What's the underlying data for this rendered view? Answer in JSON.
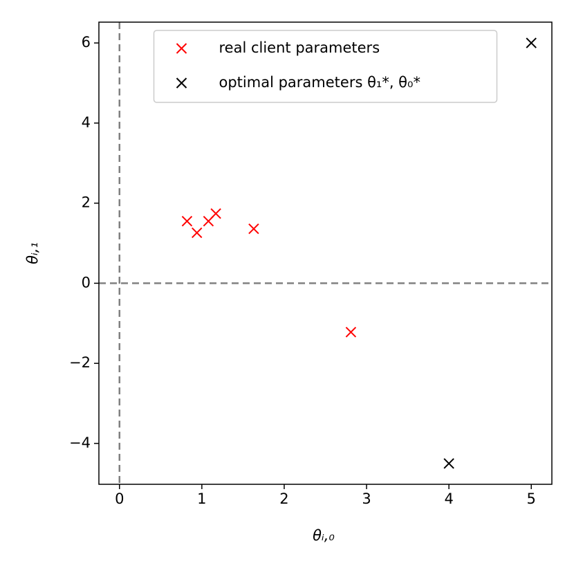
{
  "chart_data": {
    "type": "scatter",
    "xlabel": "θᵢ,₀",
    "ylabel": "θᵢ,₁",
    "series": [
      {
        "name": "real client parameters",
        "color": "#ff0000",
        "marker": "x",
        "x": [
          0.82,
          0.94,
          1.08,
          1.17,
          1.63,
          2.81
        ],
        "values": [
          1.55,
          1.26,
          1.55,
          1.74,
          1.36,
          -1.22
        ]
      },
      {
        "name": "optimal parameters θ₁*, θ₀*",
        "color": "#000000",
        "marker": "x",
        "x": [
          4,
          5
        ],
        "values": [
          -4.5,
          6
        ]
      }
    ],
    "xlim": [
      -0.25,
      5.25
    ],
    "ylim": [
      -5.02,
      6.52
    ],
    "xticks": [
      0,
      1,
      2,
      3,
      4,
      5
    ],
    "yticks": [
      {
        "value": -4,
        "label": "−4"
      },
      {
        "value": -2,
        "label": "−2"
      },
      0,
      2,
      4,
      6
    ],
    "reference_lines": {
      "x": 0,
      "y": 0,
      "color": "#808080",
      "style": "dashed"
    },
    "legend": "upper center",
    "grid": false
  }
}
